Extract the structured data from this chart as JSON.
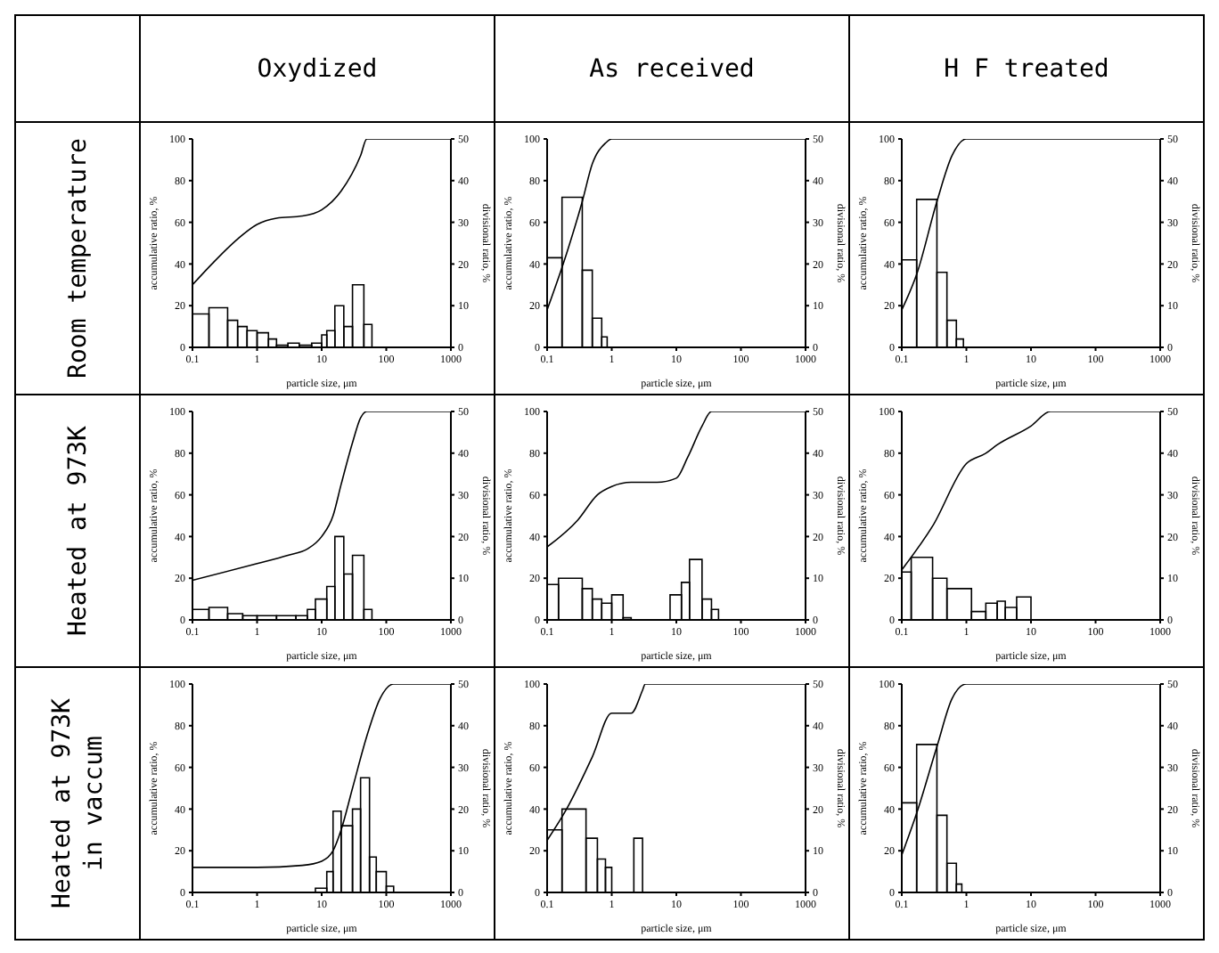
{
  "chart_data": [
    {
      "type": "histogram",
      "title": "Oxydized",
      "annotations": [
        "Room temperature"
      ],
      "xlabel": "particle size, μm",
      "ylabel": "accumulative ratio, %",
      "y2label": "divisional ratio, %",
      "log": "x",
      "xlim": [
        0.1,
        1000
      ],
      "xticks": [
        0.1,
        1,
        10,
        100,
        1000
      ],
      "ylim": [
        0,
        100
      ],
      "yticks": [
        0,
        20,
        40,
        60,
        80,
        100
      ],
      "y2lim": [
        0,
        50
      ],
      "y2ticks": [
        0,
        10,
        20,
        30,
        40,
        50
      ],
      "series": [
        {
          "axis": "y2",
          "color": "#000000",
          "bins": [
            0.1,
            0.18,
            0.35,
            0.5,
            0.7,
            1,
            1.5,
            2,
            3,
            4.5,
            7,
            10,
            12,
            16,
            22,
            30,
            45,
            60
          ],
          "values": [
            8,
            9.5,
            6.5,
            5,
            4,
            3.5,
            2,
            0.5,
            1,
            0.5,
            1,
            3,
            4,
            10,
            5,
            15,
            5.5
          ]
        },
        {
          "type": "line",
          "color": "#000000",
          "x": [
            0.1,
            0.2,
            0.5,
            1,
            2,
            5,
            10,
            20,
            40,
            50,
            1000
          ],
          "values": [
            30,
            40,
            52,
            59,
            62,
            63,
            66,
            75,
            92,
            100,
            100
          ]
        }
      ]
    },
    {
      "type": "histogram",
      "title": "As received",
      "xlabel": "particle size, μm",
      "ylabel": "accumulative ratio, %",
      "y2label": "divisional ratio, %",
      "log": "x",
      "xlim": [
        0.1,
        1000
      ],
      "xticks": [
        0.1,
        1,
        10,
        100,
        1000
      ],
      "ylim": [
        0,
        100
      ],
      "yticks": [
        0,
        20,
        40,
        60,
        80,
        100
      ],
      "y2lim": [
        0,
        50
      ],
      "y2ticks": [
        0,
        10,
        20,
        30,
        40,
        50
      ],
      "series": [
        {
          "axis": "y2",
          "color": "#000000",
          "bins": [
            0.1,
            0.17,
            0.35,
            0.5,
            0.7,
            0.85
          ],
          "values": [
            21.5,
            36,
            18.5,
            7,
            2.5
          ]
        },
        {
          "type": "line",
          "color": "#000000",
          "x": [
            0.1,
            0.2,
            0.35,
            0.5,
            0.8,
            1,
            1000
          ],
          "values": [
            18,
            45,
            70,
            88,
            98,
            100,
            100
          ]
        }
      ]
    },
    {
      "type": "histogram",
      "title": "H F treated",
      "xlabel": "particle size, μm",
      "ylabel": "accumulative ratio, %",
      "y2label": "divisional ratio, %",
      "log": "x",
      "xlim": [
        0.1,
        1000
      ],
      "xticks": [
        0.1,
        1,
        10,
        100,
        1000
      ],
      "ylim": [
        0,
        100
      ],
      "yticks": [
        0,
        20,
        40,
        60,
        80,
        100
      ],
      "y2lim": [
        0,
        50
      ],
      "y2ticks": [
        0,
        10,
        20,
        30,
        40,
        50
      ],
      "series": [
        {
          "axis": "y2",
          "color": "#000000",
          "bins": [
            0.1,
            0.17,
            0.35,
            0.5,
            0.7,
            0.9
          ],
          "values": [
            21,
            35.5,
            18,
            6.5,
            2
          ]
        },
        {
          "type": "line",
          "color": "#000000",
          "x": [
            0.1,
            0.17,
            0.35,
            0.6,
            1,
            1000
          ],
          "values": [
            18,
            35,
            70,
            92,
            100,
            100
          ]
        }
      ]
    },
    {
      "type": "histogram",
      "annotations": [
        "Heated at 973K"
      ],
      "xlabel": "particle size, μm",
      "ylabel": "accumulative ratio, %",
      "y2label": "divisional ratio, %",
      "log": "x",
      "xlim": [
        0.1,
        1000
      ],
      "xticks": [
        0.1,
        1,
        10,
        100,
        1000
      ],
      "ylim": [
        0,
        100
      ],
      "yticks": [
        0,
        20,
        40,
        60,
        80,
        100
      ],
      "y2lim": [
        0,
        50
      ],
      "y2ticks": [
        0,
        10,
        20,
        30,
        40,
        50
      ],
      "series": [
        {
          "axis": "y2",
          "color": "#000000",
          "bins": [
            0.1,
            0.18,
            0.35,
            0.6,
            1,
            2,
            4,
            6,
            8,
            12,
            16,
            22,
            30,
            45,
            60
          ],
          "values": [
            2.5,
            3,
            1.5,
            1,
            1,
            1,
            1,
            2.5,
            5,
            8,
            20,
            11,
            15.5,
            2.5
          ]
        },
        {
          "type": "line",
          "color": "#000000",
          "x": [
            0.1,
            1,
            3,
            6,
            10,
            15,
            20,
            30,
            40,
            50,
            1000
          ],
          "values": [
            19,
            27,
            31,
            34,
            40,
            50,
            65,
            85,
            97,
            100,
            100
          ]
        }
      ]
    },
    {
      "type": "histogram",
      "xlabel": "particle size, μm",
      "ylabel": "accumulative ratio, %",
      "y2label": "divisional ratio, %",
      "log": "x",
      "xlim": [
        0.1,
        1000
      ],
      "xticks": [
        0.1,
        1,
        10,
        100,
        1000
      ],
      "ylim": [
        0,
        100
      ],
      "yticks": [
        0,
        20,
        40,
        60,
        80,
        100
      ],
      "y2lim": [
        0,
        50
      ],
      "y2ticks": [
        0,
        10,
        20,
        30,
        40,
        50
      ],
      "series": [
        {
          "axis": "y2",
          "color": "#000000",
          "bins": [
            0.1,
            0.15,
            0.35,
            0.5,
            0.7,
            1,
            1.5,
            2,
            8,
            12,
            16,
            25,
            35,
            45
          ],
          "values": [
            8.5,
            10,
            7.5,
            5,
            4,
            6,
            0.5,
            0,
            6,
            9,
            14.5,
            5,
            2.5
          ]
        },
        {
          "type": "line",
          "color": "#000000",
          "x": [
            0.1,
            0.3,
            0.6,
            1,
            2,
            5,
            10,
            15,
            25,
            35,
            1000
          ],
          "values": [
            35,
            48,
            60,
            64,
            66,
            66,
            68,
            78,
            93,
            100,
            100
          ]
        }
      ]
    },
    {
      "type": "histogram",
      "xlabel": "particle size, μm",
      "ylabel": "accumulative ratio, %",
      "y2label": "divisional ratio, %",
      "log": "x",
      "xlim": [
        0.1,
        1000
      ],
      "xticks": [
        0.1,
        1,
        10,
        100,
        1000
      ],
      "ylim": [
        0,
        100
      ],
      "yticks": [
        0,
        20,
        40,
        60,
        80,
        100
      ],
      "y2lim": [
        0,
        50
      ],
      "y2ticks": [
        0,
        10,
        20,
        30,
        40,
        50
      ],
      "series": [
        {
          "axis": "y2",
          "color": "#000000",
          "bins": [
            0.1,
            0.14,
            0.3,
            0.5,
            1.2,
            2,
            3,
            4,
            6,
            10
          ],
          "values": [
            11.5,
            15,
            10,
            7.5,
            2,
            4,
            4.5,
            3,
            5.5
          ]
        },
        {
          "type": "line",
          "color": "#000000",
          "x": [
            0.1,
            0.3,
            1,
            2,
            3,
            10,
            20,
            1000
          ],
          "values": [
            24,
            45,
            75,
            80,
            84,
            93,
            100,
            100
          ]
        }
      ]
    },
    {
      "type": "histogram",
      "annotations": [
        "Heated at 973K in vaccum"
      ],
      "xlabel": "particle size, μm",
      "ylabel": "accumulative ratio, %",
      "y2label": "divisional ratio, %",
      "log": "x",
      "xlim": [
        0.1,
        1000
      ],
      "xticks": [
        0.1,
        1,
        10,
        100,
        1000
      ],
      "ylim": [
        0,
        100
      ],
      "yticks": [
        0,
        20,
        40,
        60,
        80,
        100
      ],
      "y2lim": [
        0,
        50
      ],
      "y2ticks": [
        0,
        10,
        20,
        30,
        40,
        50
      ],
      "series": [
        {
          "axis": "y2",
          "color": "#000000",
          "bins": [
            8,
            12,
            15,
            20,
            30,
            40,
            55,
            70,
            100,
            130
          ],
          "values": [
            1,
            5,
            19.5,
            16,
            20,
            27.5,
            8.5,
            5,
            1.5
          ]
        },
        {
          "type": "line",
          "color": "#000000",
          "x": [
            0.1,
            1,
            5,
            10,
            15,
            20,
            30,
            50,
            80,
            130,
            1000
          ],
          "values": [
            12,
            12,
            13,
            15,
            20,
            30,
            50,
            75,
            93,
            100,
            100
          ]
        }
      ]
    },
    {
      "type": "histogram",
      "xlabel": "particle size, μm",
      "ylabel": "accumulative ratio, %",
      "y2label": "divisional ratio, %",
      "log": "x",
      "xlim": [
        0.1,
        1000
      ],
      "xticks": [
        0.1,
        1,
        10,
        100,
        1000
      ],
      "ylim": [
        0,
        100
      ],
      "yticks": [
        0,
        20,
        40,
        60,
        80,
        100
      ],
      "y2lim": [
        0,
        50
      ],
      "y2ticks": [
        0,
        10,
        20,
        30,
        40,
        50
      ],
      "series": [
        {
          "axis": "y2",
          "color": "#000000",
          "bins": [
            0.1,
            0.17,
            0.4,
            0.6,
            0.8,
            1,
            2.2,
            3
          ],
          "values": [
            15,
            20,
            13,
            8,
            6,
            0,
            13
          ]
        },
        {
          "type": "line",
          "color": "#000000",
          "x": [
            0.1,
            0.2,
            0.5,
            1,
            2,
            3,
            3.3,
            1000
          ],
          "values": [
            25,
            40,
            65,
            86,
            86,
            97,
            100,
            100
          ]
        }
      ]
    },
    {
      "type": "histogram",
      "xlabel": "particle size, μm",
      "ylabel": "accumulative ratio, %",
      "y2label": "divisional ratio, %",
      "log": "x",
      "xlim": [
        0.1,
        1000
      ],
      "xticks": [
        0.1,
        1,
        10,
        100,
        1000
      ],
      "ylim": [
        0,
        100
      ],
      "yticks": [
        0,
        20,
        40,
        60,
        80,
        100
      ],
      "y2lim": [
        0,
        50
      ],
      "y2ticks": [
        0,
        10,
        20,
        30,
        40,
        50
      ],
      "series": [
        {
          "axis": "y2",
          "color": "#000000",
          "bins": [
            0.1,
            0.17,
            0.35,
            0.5,
            0.7,
            0.85
          ],
          "values": [
            21.5,
            35.5,
            18.5,
            7,
            2
          ]
        },
        {
          "type": "line",
          "color": "#000000",
          "x": [
            0.1,
            0.17,
            0.35,
            0.6,
            1,
            1000
          ],
          "values": [
            18,
            38,
            70,
            93,
            100,
            100
          ]
        }
      ]
    }
  ]
}
